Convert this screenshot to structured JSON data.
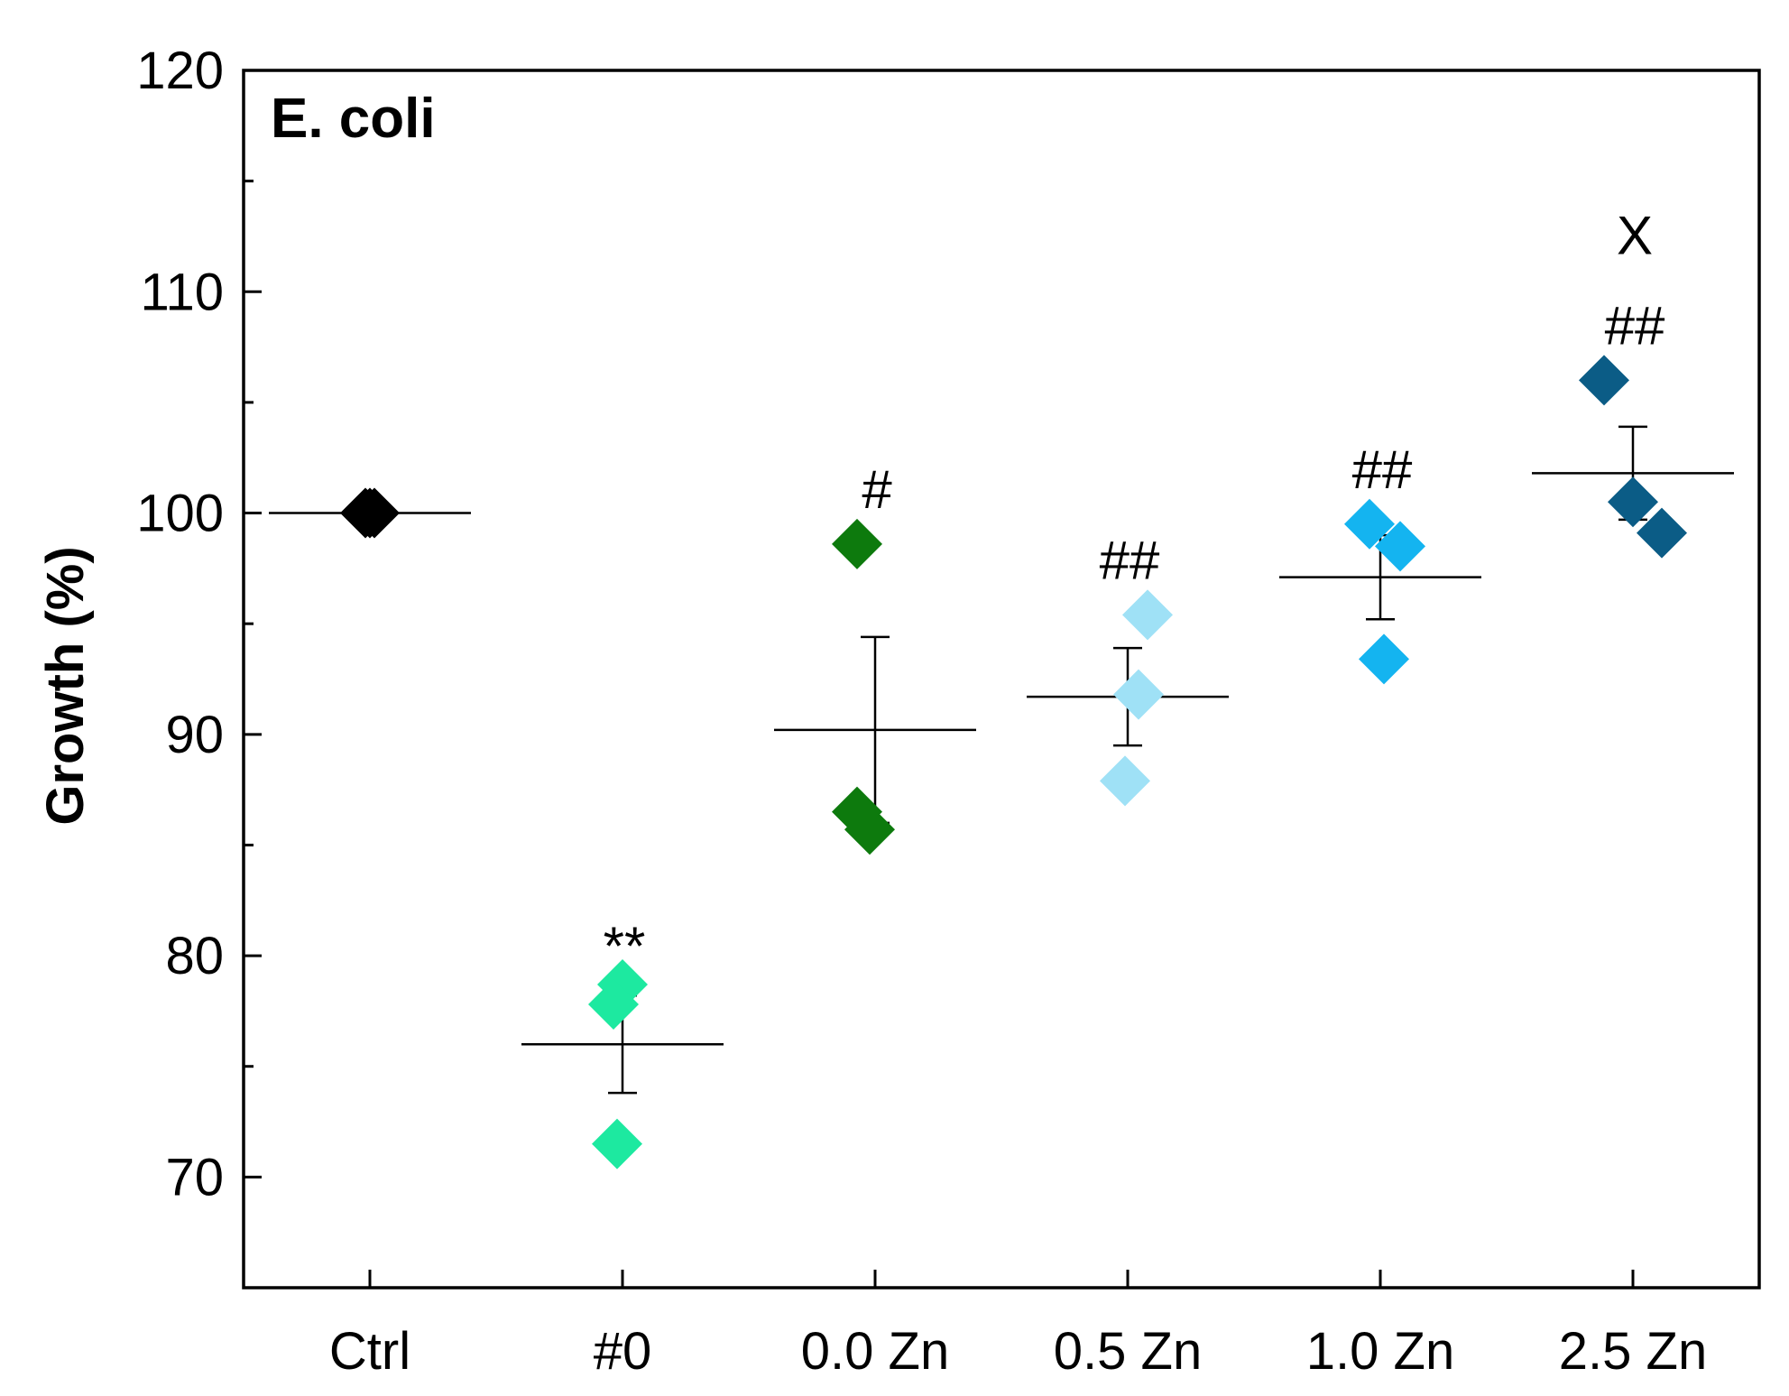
{
  "chart_data": {
    "type": "scatter",
    "panel_label": "E. coli",
    "ylabel": "Growth (%)",
    "xlabel": "",
    "ylim": [
      65,
      120
    ],
    "yticks": [
      70,
      80,
      90,
      100,
      110,
      120
    ],
    "yticks_minor": [
      75,
      85,
      95,
      105,
      115
    ],
    "categories": [
      "Ctrl",
      "#0",
      "0.0 Zn",
      "0.5 Zn",
      "1.0 Zn",
      "2.5 Zn"
    ],
    "groups": [
      {
        "name": "Ctrl",
        "color": "#000000",
        "points": [
          100.0,
          100.0,
          100.0
        ],
        "mean": 100.0,
        "error": 0.0,
        "annotations": []
      },
      {
        "name": "#0",
        "color": "#1de9a0",
        "points": [
          78.7,
          77.8,
          71.5
        ],
        "mean": 76.0,
        "error": 2.2,
        "annotations": [
          "**"
        ]
      },
      {
        "name": "0.0 Zn",
        "color": "#0d7a0d",
        "points": [
          98.6,
          86.5,
          85.7
        ],
        "mean": 90.2,
        "error": 4.2,
        "annotations": [
          "#"
        ]
      },
      {
        "name": "0.5 Zn",
        "color": "#9fe1f6",
        "points": [
          95.4,
          91.8,
          87.9
        ],
        "mean": 91.7,
        "error": 2.2,
        "annotations": [
          "##"
        ]
      },
      {
        "name": "1.0 Zn",
        "color": "#14b4f0",
        "points": [
          99.5,
          98.5,
          93.4
        ],
        "mean": 97.1,
        "error": 1.9,
        "annotations": [
          "##"
        ]
      },
      {
        "name": "2.5 Zn",
        "color": "#0b5c86",
        "points": [
          106.0,
          100.5,
          99.1
        ],
        "mean": 101.8,
        "error": 2.1,
        "annotations": [
          "##",
          "X"
        ]
      }
    ]
  }
}
